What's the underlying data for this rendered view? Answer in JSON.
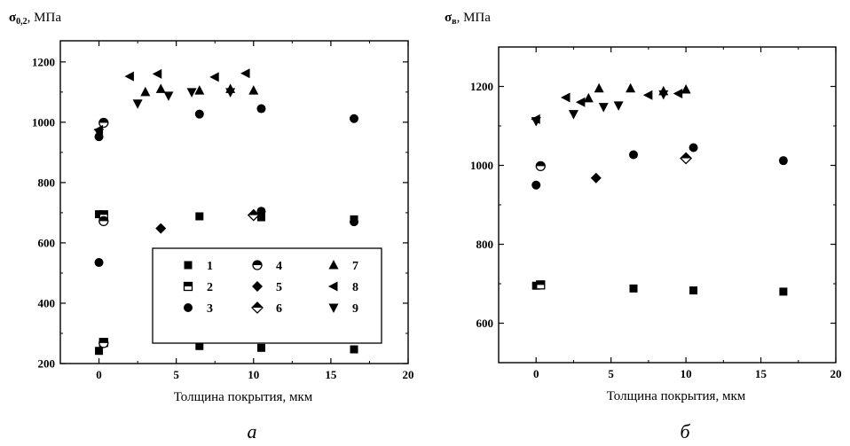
{
  "chart_data": [
    {
      "type": "scatter",
      "ylabel_main": "σ",
      "ylabel_sub": "0,2",
      "ylabel_unit": ", МПа",
      "xlabel": "Толщина покрытия, мкм",
      "caption": "а",
      "xlim": [
        -2.5,
        20
      ],
      "ylim": [
        200,
        1270
      ],
      "xticks": [
        0,
        5,
        10,
        15,
        20
      ],
      "yticks": [
        200,
        400,
        600,
        800,
        1000,
        1200
      ],
      "legend": "inside-bottom-right",
      "series": [
        {
          "name": "1",
          "marker": "square-filled",
          "points": [
            [
              0,
              242
            ],
            [
              6.5,
              258
            ],
            [
              10.5,
              252
            ],
            [
              16.5,
              247
            ],
            [
              0,
              695
            ],
            [
              6.5,
              688
            ],
            [
              10.5,
              685
            ],
            [
              16.5,
              678
            ]
          ]
        },
        {
          "name": "2",
          "marker": "square-half",
          "points": [
            [
              0.3,
              270
            ],
            [
              0.3,
              693
            ]
          ]
        },
        {
          "name": "3",
          "marker": "circle-filled",
          "points": [
            [
              0,
              535
            ],
            [
              0,
              952
            ],
            [
              6.5,
              1027
            ],
            [
              10.5,
              1045
            ],
            [
              10.5,
              705
            ],
            [
              16.5,
              1012
            ],
            [
              16.5,
              670
            ]
          ]
        },
        {
          "name": "4",
          "marker": "circle-half",
          "points": [
            [
              0.3,
              268
            ],
            [
              0.3,
              672
            ],
            [
              0.3,
              998
            ]
          ]
        },
        {
          "name": "5",
          "marker": "diamond-filled",
          "points": [
            [
              4,
              648
            ]
          ]
        },
        {
          "name": "6",
          "marker": "diamond-half",
          "points": [
            [
              10,
              692
            ]
          ]
        },
        {
          "name": "7",
          "marker": "triangle-up",
          "points": [
            [
              3,
              1100
            ],
            [
              4,
              1110
            ],
            [
              6.5,
              1105
            ],
            [
              8.5,
              1110
            ],
            [
              10,
              1105
            ]
          ]
        },
        {
          "name": "8",
          "marker": "triangle-left",
          "points": [
            [
              0,
              975
            ],
            [
              2,
              1152
            ],
            [
              3.8,
              1160
            ],
            [
              7.5,
              1150
            ],
            [
              9.5,
              1162
            ]
          ]
        },
        {
          "name": "9",
          "marker": "triangle-down",
          "points": [
            [
              0,
              965
            ],
            [
              2.5,
              1062
            ],
            [
              4.5,
              1088
            ],
            [
              6,
              1100
            ],
            [
              8.5,
              1100
            ]
          ]
        }
      ]
    },
    {
      "type": "scatter",
      "ylabel_main": "σ",
      "ylabel_sub": "в",
      "ylabel_unit": ", МПа",
      "xlabel": "Толщина покрытия, мкм",
      "caption": "б",
      "xlim": [
        -2.5,
        20
      ],
      "ylim": [
        500,
        1300
      ],
      "xticks": [
        0,
        5,
        10,
        15,
        20
      ],
      "yticks": [
        600,
        800,
        1000,
        1200
      ],
      "series": [
        {
          "name": "1",
          "marker": "square-filled",
          "points": [
            [
              0,
              695
            ],
            [
              6.5,
              688
            ],
            [
              10.5,
              683
            ],
            [
              16.5,
              680
            ]
          ]
        },
        {
          "name": "2",
          "marker": "square-half",
          "points": [
            [
              0.3,
              697
            ]
          ]
        },
        {
          "name": "3",
          "marker": "circle-filled",
          "points": [
            [
              0,
              950
            ],
            [
              6.5,
              1027
            ],
            [
              10.5,
              1045
            ],
            [
              16.5,
              1012
            ]
          ]
        },
        {
          "name": "4",
          "marker": "circle-half",
          "points": [
            [
              0.3,
              998
            ]
          ]
        },
        {
          "name": "5",
          "marker": "diamond-filled",
          "points": [
            [
              4,
              968
            ]
          ]
        },
        {
          "name": "6",
          "marker": "diamond-half",
          "points": [
            [
              10,
              1018
            ]
          ]
        },
        {
          "name": "7",
          "marker": "triangle-up",
          "points": [
            [
              3.5,
              1170
            ],
            [
              4.2,
              1195
            ],
            [
              6.3,
              1195
            ],
            [
              8.5,
              1188
            ],
            [
              10,
              1192
            ]
          ]
        },
        {
          "name": "8",
          "marker": "triangle-left",
          "points": [
            [
              0,
              1117
            ],
            [
              2,
              1172
            ],
            [
              3,
              1160
            ],
            [
              7.5,
              1178
            ],
            [
              9.5,
              1182
            ]
          ]
        },
        {
          "name": "9",
          "marker": "triangle-down",
          "points": [
            [
              0,
              1112
            ],
            [
              2.5,
              1130
            ],
            [
              4.5,
              1148
            ],
            [
              5.5,
              1152
            ],
            [
              8.5,
              1180
            ]
          ]
        }
      ]
    }
  ]
}
